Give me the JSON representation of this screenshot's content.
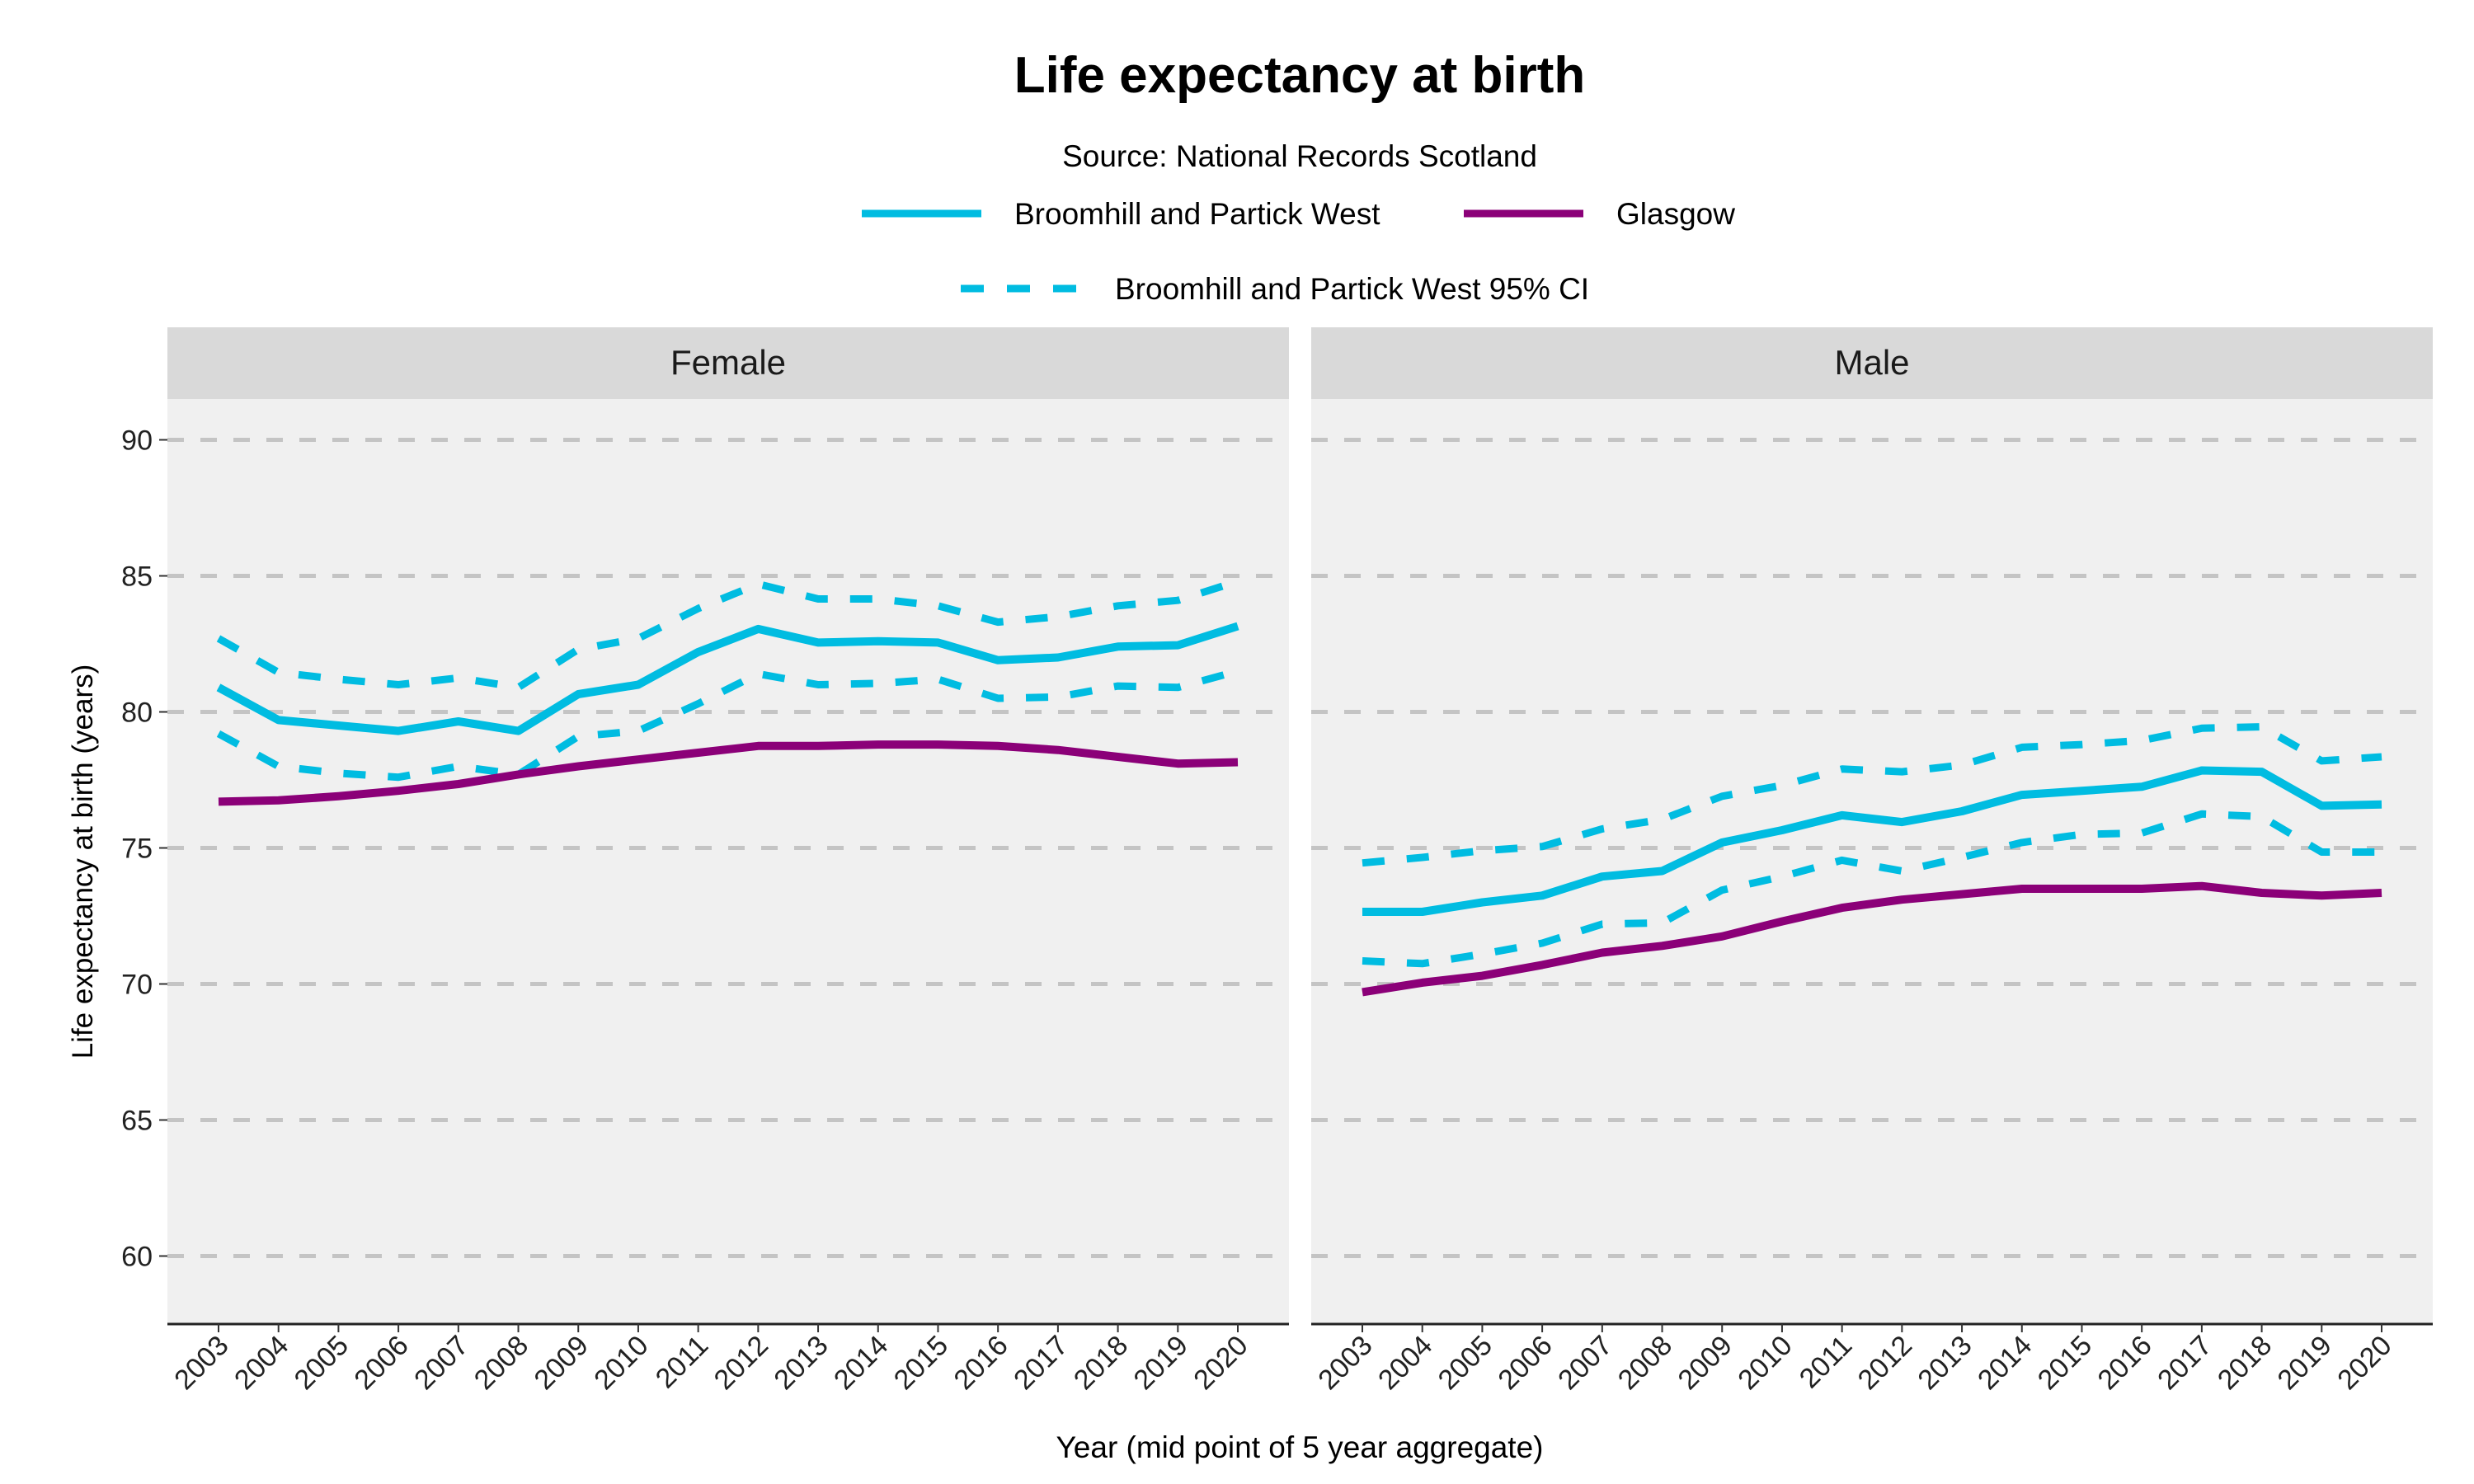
{
  "chart_data": {
    "type": "line",
    "title": "Life expectancy at birth",
    "subtitle": "Source: National Records Scotland",
    "xlabel": "Year (mid point of 5 year aggregate)",
    "ylabel": "Life expectancy at birth (years)",
    "ylim": [
      57.5,
      91.5
    ],
    "yticks": [
      60,
      65,
      70,
      75,
      80,
      85,
      90
    ],
    "grid": "horizontal dashed",
    "legend_position": "top",
    "colors": {
      "area": "#00BCE1",
      "glasgow": "#8B0078",
      "grid": "#C4C4C4",
      "panel_bg": "#F0F0F0",
      "strip_bg": "#D9D9D9"
    },
    "legend": [
      {
        "label": "Broomhill and Partick West",
        "style": "solid",
        "color": "#00BCE1"
      },
      {
        "label": "Glasgow",
        "style": "solid",
        "color": "#8B0078"
      },
      {
        "label": "Broomhill and Partick West 95% CI",
        "style": "dashed",
        "color": "#00BCE1"
      }
    ],
    "categories": [
      "2003",
      "2004",
      "2005",
      "2006",
      "2007",
      "2008",
      "2009",
      "2010",
      "2011",
      "2012",
      "2013",
      "2014",
      "2015",
      "2016",
      "2017",
      "2018",
      "2019",
      "2020"
    ],
    "panels": [
      {
        "label": "Female",
        "series": [
          {
            "name": "Broomhill and Partick West",
            "values": [
              80.9,
              79.7,
              79.5,
              79.3,
              79.65,
              79.3,
              80.65,
              81.0,
              82.2,
              83.05,
              82.55,
              82.6,
              82.55,
              81.9,
              82.0,
              82.4,
              82.45,
              83.15
            ]
          },
          {
            "name": "Broomhill and Partick West 95% CI",
            "bound": "upper",
            "values": [
              82.7,
              81.45,
              81.2,
              81.0,
              81.25,
              80.9,
              82.3,
              82.7,
              83.8,
              84.7,
              84.15,
              84.15,
              83.9,
              83.3,
              83.5,
              83.9,
              84.1,
              84.8
            ]
          },
          {
            "name": "Broomhill and Partick West 95% CI",
            "bound": "lower",
            "values": [
              79.2,
              78.0,
              77.75,
              77.6,
              78.0,
              77.7,
              79.1,
              79.3,
              80.3,
              81.4,
              81.0,
              81.05,
              81.2,
              80.5,
              80.55,
              80.95,
              80.9,
              81.5
            ]
          },
          {
            "name": "Glasgow",
            "values": [
              76.7,
              76.75,
              76.9,
              77.1,
              77.35,
              77.7,
              78.0,
              78.25,
              78.5,
              78.75,
              78.75,
              78.8,
              78.8,
              78.75,
              78.6,
              78.35,
              78.1,
              78.15
            ]
          }
        ]
      },
      {
        "label": "Male",
        "series": [
          {
            "name": "Broomhill and Partick West",
            "values": [
              72.65,
              72.65,
              73.0,
              73.25,
              73.95,
              74.15,
              75.2,
              75.65,
              76.2,
              75.95,
              76.35,
              76.95,
              77.1,
              77.25,
              77.85,
              77.8,
              76.55,
              76.6
            ]
          },
          {
            "name": "Broomhill and Partick West 95% CI",
            "bound": "upper",
            "values": [
              74.45,
              74.65,
              74.9,
              75.05,
              75.7,
              76.05,
              76.9,
              77.3,
              77.9,
              77.8,
              78.05,
              78.7,
              78.8,
              78.95,
              79.4,
              79.45,
              78.2,
              78.35
            ]
          },
          {
            "name": "Broomhill and Partick West 95% CI",
            "bound": "lower",
            "values": [
              70.85,
              70.75,
              71.1,
              71.5,
              72.2,
              72.25,
              73.45,
              73.95,
              74.55,
              74.15,
              74.65,
              75.2,
              75.5,
              75.55,
              76.25,
              76.15,
              74.85,
              74.85
            ]
          },
          {
            "name": "Glasgow",
            "values": [
              69.7,
              70.05,
              70.3,
              70.7,
              71.15,
              71.4,
              71.75,
              72.3,
              72.8,
              73.1,
              73.3,
              73.5,
              73.5,
              73.5,
              73.6,
              73.35,
              73.25,
              73.35
            ]
          }
        ]
      }
    ]
  }
}
